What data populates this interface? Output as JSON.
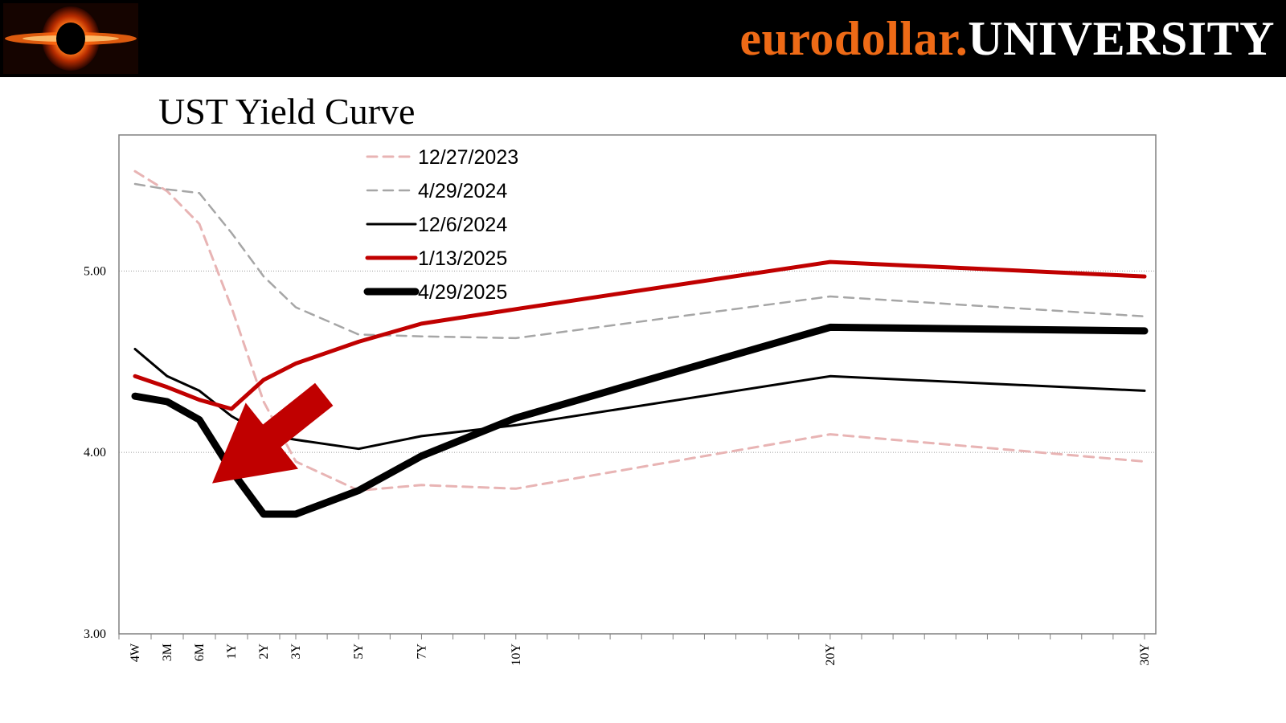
{
  "header": {
    "brand_part1": "eurodollar.",
    "brand_part2": "UNIVERSITY",
    "brand_color_orange": "#ee6a16",
    "brand_color_white": "#ffffff",
    "logo_icon": "black-hole-logo-icon"
  },
  "chart_data": {
    "type": "line",
    "title": "UST Yield Curve",
    "xlabel": "",
    "ylabel": "",
    "ylim": [
      3.0,
      5.75
    ],
    "yticks": [
      3.0,
      4.0,
      5.0
    ],
    "ytick_labels": [
      "3.00",
      "4.00",
      "5.00"
    ],
    "grid": "horizontal dotted at 4.00 and 5.00",
    "legend_placement": "top-center",
    "x_axis_scale": "maturity in years",
    "categories": [
      "4W",
      "3M",
      "6M",
      "1Y",
      "2Y",
      "3Y",
      "5Y",
      "7Y",
      "10Y",
      "20Y",
      "30Y"
    ],
    "x": [
      0.077,
      0.25,
      0.5,
      1,
      2,
      3,
      5,
      7,
      10,
      20,
      30
    ],
    "series": [
      {
        "name": "12/27/2023",
        "color": "#e8b4b4",
        "style": "dashed",
        "width": 3,
        "values": [
          5.55,
          5.44,
          5.26,
          4.8,
          4.28,
          3.95,
          3.79,
          3.82,
          3.8,
          4.1,
          3.95
        ]
      },
      {
        "name": "4/29/2024",
        "color": "#a6a6a6",
        "style": "dashed",
        "width": 2.5,
        "values": [
          5.48,
          5.45,
          5.43,
          5.21,
          4.97,
          4.8,
          4.65,
          4.64,
          4.63,
          4.86,
          4.75
        ]
      },
      {
        "name": "12/6/2024",
        "color": "#000000",
        "style": "solid",
        "width": 3,
        "values": [
          4.57,
          4.42,
          4.34,
          4.2,
          4.1,
          4.07,
          4.02,
          4.09,
          4.15,
          4.42,
          4.34
        ]
      },
      {
        "name": "1/13/2025",
        "color": "#c00000",
        "style": "solid",
        "width": 5,
        "values": [
          4.42,
          4.36,
          4.29,
          4.24,
          4.4,
          4.49,
          4.61,
          4.71,
          4.79,
          5.05,
          4.97
        ]
      },
      {
        "name": "4/29/2025",
        "color": "#000000",
        "style": "solid",
        "width": 9,
        "values": [
          4.31,
          4.28,
          4.18,
          3.9,
          3.66,
          3.66,
          3.79,
          3.98,
          4.19,
          4.69,
          4.67
        ]
      }
    ],
    "annotations": [
      {
        "type": "arrow",
        "direction": "down-left",
        "color": "#c00000",
        "from_x": 3.9,
        "from_y": 4.32,
        "to_x": 2.4,
        "to_y": 3.83
      }
    ]
  }
}
